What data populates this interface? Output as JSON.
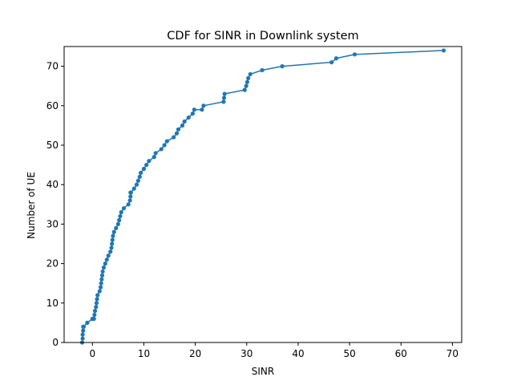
{
  "chart_data": {
    "type": "line",
    "title": "CDF for SINR in Downlink system",
    "xlabel": "SINR",
    "ylabel": "Number of UE",
    "xlim": [
      -5.5,
      71.8
    ],
    "ylim": [
      0,
      75
    ],
    "xticks": [
      0,
      10,
      20,
      30,
      40,
      50,
      60,
      70
    ],
    "yticks": [
      0,
      10,
      20,
      30,
      40,
      50,
      60,
      70
    ],
    "grid": false,
    "series": [
      {
        "color": "#1f77b4",
        "marker": "circle",
        "x": [
          -2.0,
          -1.9,
          -1.9,
          -1.8,
          -1.8,
          -1.7,
          -1.0,
          0.0,
          0.3,
          0.4,
          0.5,
          0.7,
          0.8,
          0.9,
          1.0,
          1.4,
          1.6,
          1.7,
          1.8,
          1.9,
          2.0,
          2.2,
          2.5,
          2.8,
          3.1,
          3.5,
          3.7,
          3.8,
          3.9,
          4.0,
          4.2,
          4.6,
          5.0,
          5.2,
          5.4,
          5.6,
          6.1,
          7.0,
          7.3,
          7.4,
          7.4,
          7.5,
          8.1,
          8.6,
          8.9,
          9.2,
          9.4,
          10.0,
          10.5,
          11.0,
          12.0,
          12.3,
          13.4,
          14.0,
          14.5,
          15.8,
          16.4,
          16.7,
          17.5,
          17.9,
          18.7,
          19.5,
          19.8,
          21.3,
          21.6,
          25.5,
          25.6,
          25.7,
          29.6,
          29.9,
          30.1,
          30.3,
          30.7,
          33.0,
          36.9,
          46.5,
          47.4,
          51.0,
          68.3
        ],
        "y": [
          0,
          1,
          2,
          3,
          4,
          4,
          5,
          6,
          6,
          7,
          8,
          9,
          10,
          11,
          12,
          13,
          14,
          15,
          16,
          17,
          18,
          19,
          20,
          21,
          22,
          23,
          24,
          25,
          26,
          27,
          28,
          29,
          30,
          31,
          32,
          33,
          34,
          35,
          36,
          37,
          38,
          38,
          39,
          40,
          41,
          42,
          43,
          44,
          45,
          46,
          47,
          48,
          49,
          50,
          51,
          52,
          53,
          54,
          55,
          56,
          57,
          58,
          59,
          59,
          60,
          61,
          62,
          63,
          64,
          65,
          66,
          67,
          68,
          69,
          70,
          71,
          72,
          73,
          74
        ]
      }
    ]
  }
}
